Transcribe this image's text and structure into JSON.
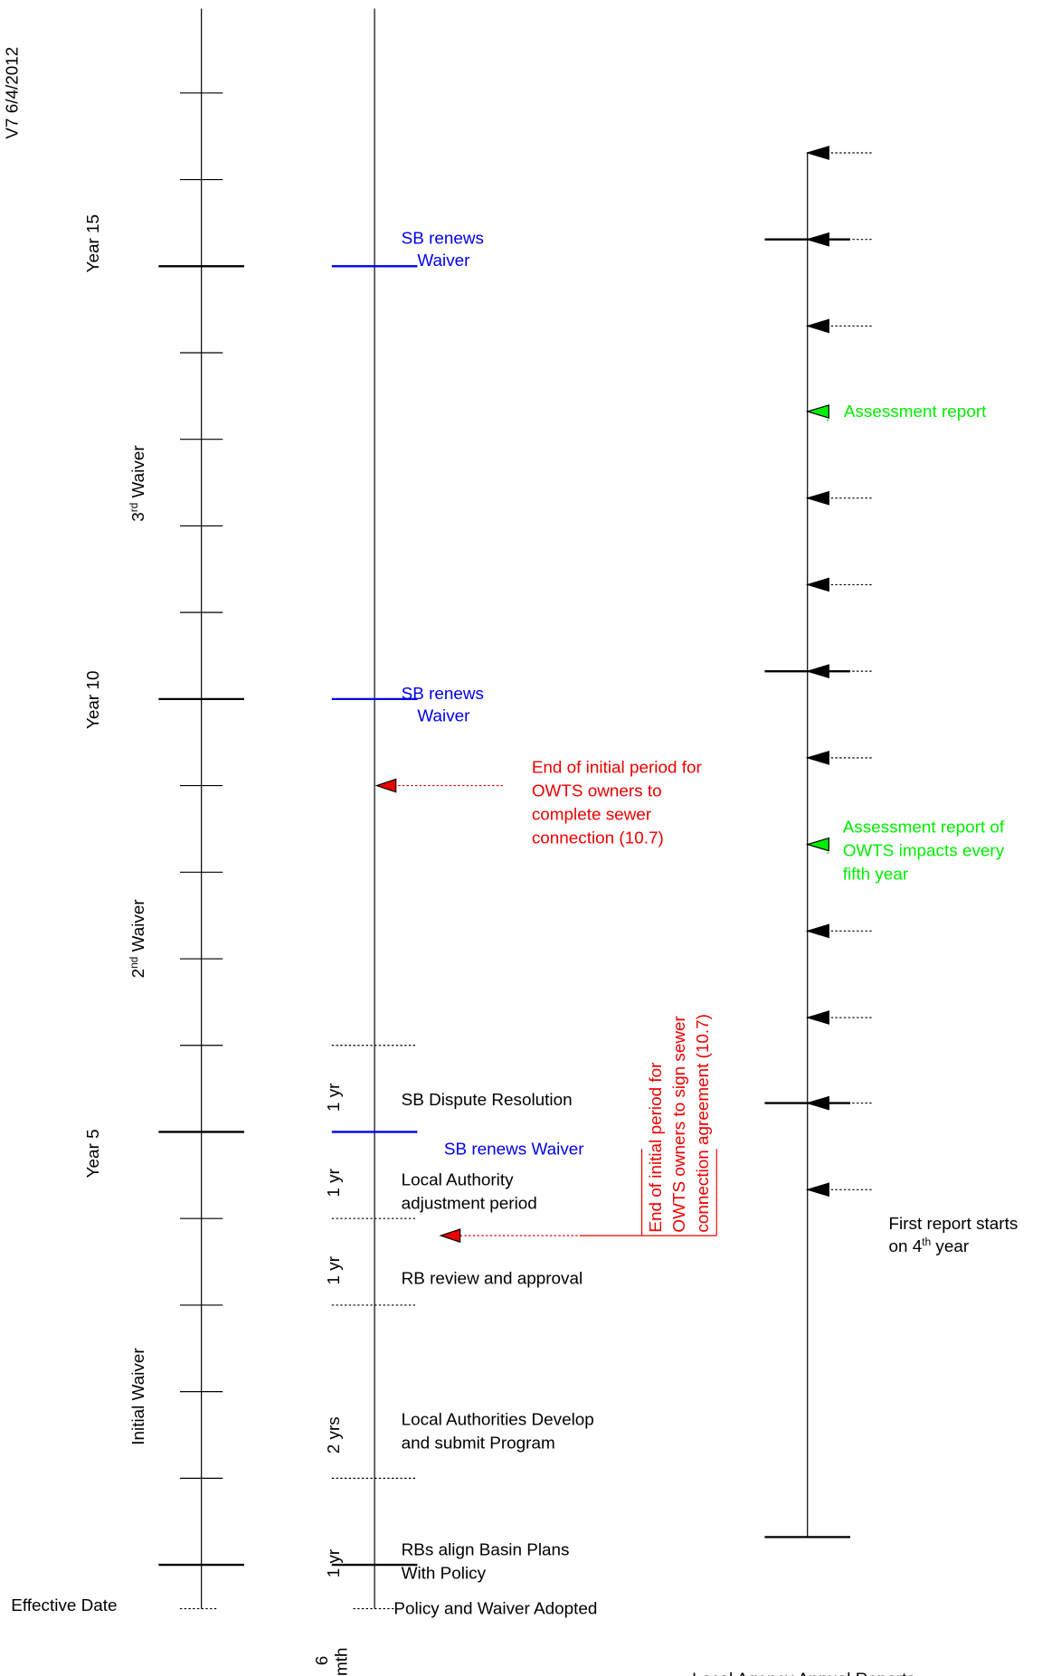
{
  "version": "V7  6/4/2012",
  "left": {
    "year15": "Year 15",
    "waiver3": {
      "base": "3",
      "sup": "rd",
      "rest": " Waiver"
    },
    "year10": "Year 10",
    "waiver2": {
      "base": "2",
      "sup": "nd",
      "rest": " Waiver"
    },
    "year5": "Year 5",
    "initial": "Initial Waiver",
    "effective": "Effective Date"
  },
  "middle": {
    "renew15": [
      "SB renews",
      "Waiver"
    ],
    "renew10": [
      "SB renews",
      "Waiver"
    ],
    "connection": [
      "End of initial period for",
      "OWTS owners to",
      "complete sewer",
      "connection (10.7)"
    ],
    "agreement": [
      "End of initial period for",
      "OWTS owners to sign sewer",
      "connection agreement (10.7)"
    ],
    "phases": [
      {
        "duration": "1 yr",
        "lines": [
          "SB Dispute Resolution"
        ]
      },
      {
        "duration": "1 yr",
        "lines": [
          "Local Authority",
          "adjustment period"
        ]
      },
      {
        "duration": "1 yr",
        "lines": [
          "RB review and approval"
        ]
      },
      {
        "duration": "2 yrs",
        "lines": [
          "Local Authorities Develop",
          "and submit Program"
        ]
      },
      {
        "duration": "1 yr",
        "lines": [
          "RBs align Basin Plans",
          "With Policy"
        ]
      }
    ],
    "renew5": "SB renews Waiver",
    "adopted": "Policy and Waiver Adopted",
    "halfyear": [
      "6",
      "mth"
    ]
  },
  "right": {
    "assessment": "Assessment report",
    "assessment5": [
      "Assessment report of",
      "OWTS impacts every",
      "fifth year"
    ],
    "first": {
      "line1": "First report starts",
      "pre": "on 4",
      "sup": "th",
      "post": " year"
    },
    "footer": "Local Agency Annual Reports"
  }
}
